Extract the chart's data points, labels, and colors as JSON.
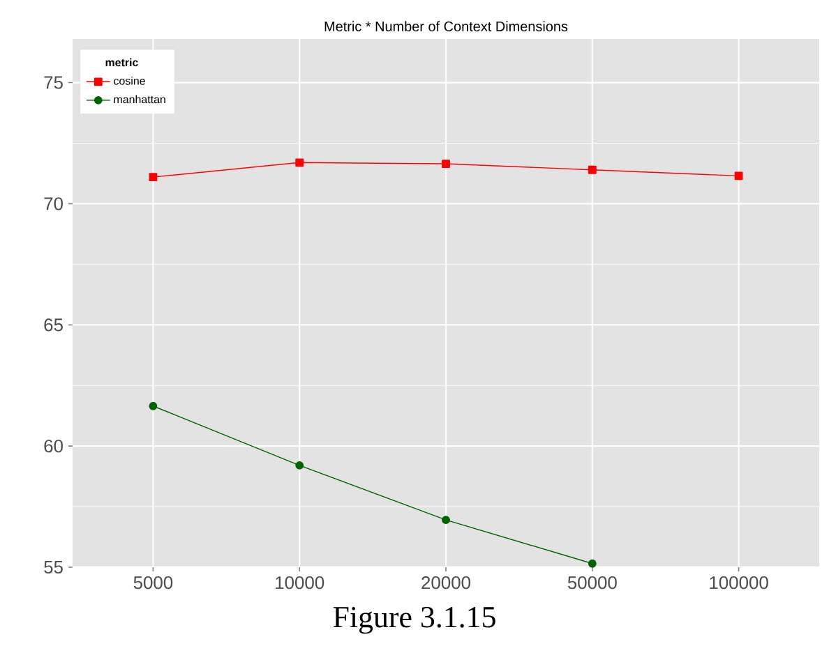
{
  "chart_data": {
    "type": "line",
    "title": "Metric * Number of Context Dimensions",
    "categories": [
      "5000",
      "10000",
      "20000",
      "50000",
      "100000"
    ],
    "series": [
      {
        "name": "cosine",
        "color": "#ff0000",
        "marker": "square",
        "values": [
          71.1,
          71.7,
          71.65,
          71.4,
          71.15
        ]
      },
      {
        "name": "manhattan",
        "color": "#006400",
        "marker": "circle",
        "values": [
          61.65,
          59.2,
          56.95,
          55.15,
          null
        ]
      }
    ],
    "ylim": [
      55,
      76.8
    ],
    "yticks": [
      55,
      60,
      65,
      70,
      75
    ],
    "grid": true,
    "legend": "top left",
    "legend_title": "metric",
    "annotations": [
      "Figure 3.1.15"
    ]
  }
}
